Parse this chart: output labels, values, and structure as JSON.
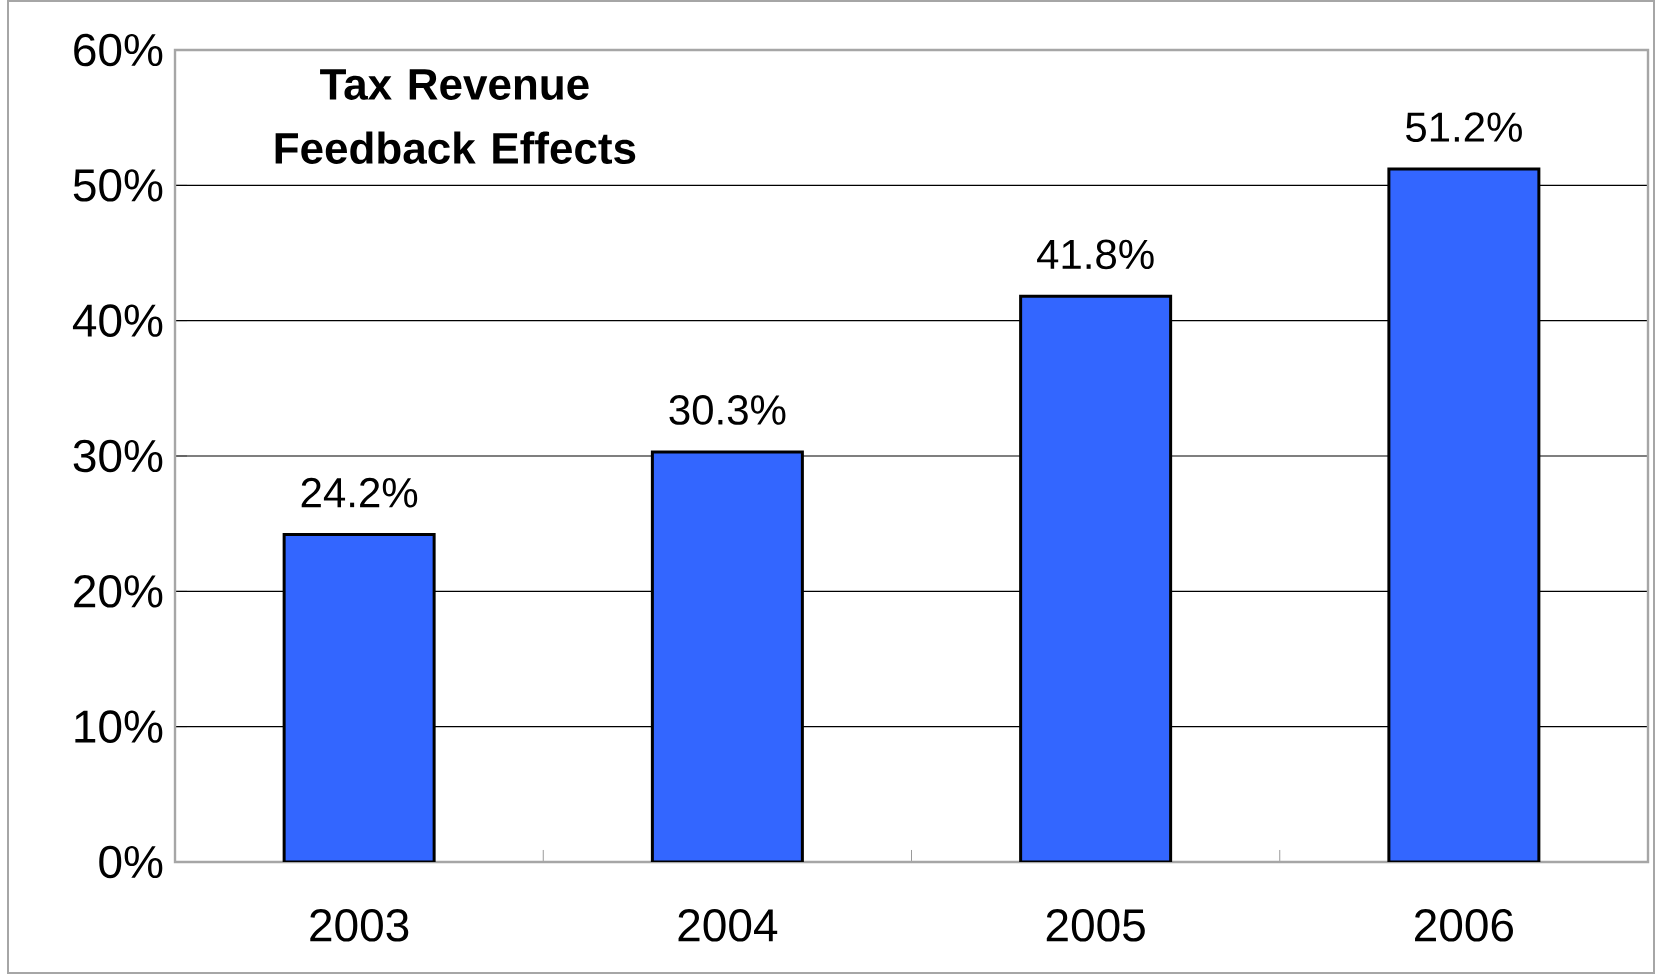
{
  "chart_data": {
    "type": "bar",
    "title": "Tax Revenue Feedback Effects",
    "categories": [
      "2003",
      "2004",
      "2005",
      "2006"
    ],
    "values": [
      24.2,
      30.3,
      41.8,
      51.2
    ],
    "value_labels": [
      "24.2%",
      "30.3%",
      "41.8%",
      "51.2%"
    ],
    "color": "#3366ff",
    "ylim": [
      0,
      60
    ],
    "yticks": [
      {
        "value": 0,
        "label": "0%"
      },
      {
        "value": 10,
        "label": "10%"
      },
      {
        "value": 20,
        "label": "20%"
      },
      {
        "value": 30,
        "label": "30%"
      },
      {
        "value": 40,
        "label": "40%"
      },
      {
        "value": 50,
        "label": "50%"
      },
      {
        "value": 60,
        "label": "60%"
      }
    ],
    "grid": "y"
  }
}
